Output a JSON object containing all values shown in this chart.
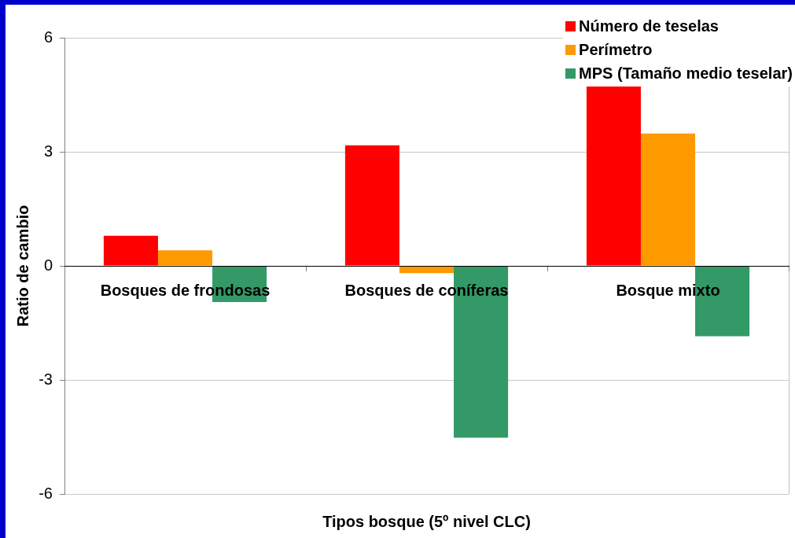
{
  "chart_data": {
    "type": "bar",
    "xlabel": "Tipos bosque (5º nivel CLC)",
    "ylabel": "Ratio de cambio",
    "categories": [
      "Bosques de frondosas",
      "Bosques de coníferas",
      "Bosque mixto"
    ],
    "series": [
      {
        "name": "Número de teselas",
        "color": "#ff0000",
        "values": [
          0.79,
          3.17,
          4.76
        ]
      },
      {
        "name": "Perímetro",
        "color": "#ff9900",
        "values": [
          0.41,
          -0.19,
          3.48
        ]
      },
      {
        "name": "MPS (Tamaño medio teselar)",
        "color": "#339966",
        "values": [
          -0.95,
          -4.52,
          -1.85
        ]
      }
    ],
    "ylim": [
      -6,
      6
    ],
    "yticks": [
      -6,
      -3,
      0,
      3,
      6
    ],
    "grid": "y",
    "legend": "top right"
  }
}
